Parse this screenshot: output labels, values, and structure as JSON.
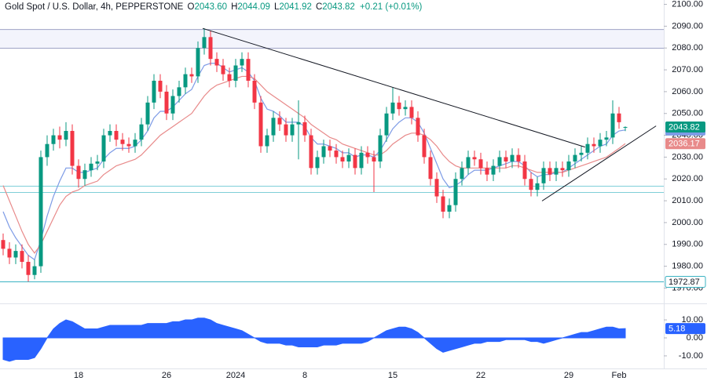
{
  "header": {
    "symbol": "Gold Spot / U.S. Dollar, 4h, PEPPERSTONE",
    "fields": [
      {
        "key": "O",
        "value": "2043.60"
      },
      {
        "key": "H",
        "value": "2044.09"
      },
      {
        "key": "L",
        "value": "2041.92"
      },
      {
        "key": "C",
        "value": "2043.82"
      }
    ],
    "change": "+0.21 (+0.01%)"
  },
  "chart_data": [
    {
      "type": "candlestick",
      "categories": [
        null,
        null,
        null,
        null,
        null,
        null,
        null,
        null,
        null,
        null,
        null,
        null,
        "18",
        null,
        null,
        null,
        null,
        null,
        null,
        null,
        null,
        null,
        null,
        null,
        null,
        null,
        "26",
        null,
        null,
        null,
        null,
        null,
        null,
        null,
        null,
        null,
        null,
        "2024",
        null,
        null,
        null,
        null,
        null,
        null,
        null,
        null,
        null,
        null,
        "8",
        null,
        null,
        null,
        null,
        null,
        null,
        null,
        null,
        null,
        null,
        null,
        null,
        null,
        "15",
        null,
        null,
        null,
        null,
        null,
        null,
        null,
        null,
        null,
        null,
        null,
        null,
        null,
        "22",
        null,
        null,
        null,
        null,
        null,
        null,
        null,
        null,
        null,
        null,
        null,
        null,
        null,
        "29",
        null,
        null,
        null,
        null,
        null,
        null,
        null,
        "Feb",
        null
      ],
      "open": [
        1992,
        1988,
        1984,
        1987,
        1982,
        1976,
        1980,
        2030,
        2036,
        2040,
        2038,
        2042,
        2026,
        2020,
        2024,
        2027,
        2028,
        2040,
        2042,
        2038,
        2036,
        2035,
        2038,
        2045,
        2055,
        2065,
        2060,
        2050,
        2058,
        2062,
        2068,
        2067,
        2080,
        2085,
        2075,
        2072,
        2068,
        2065,
        2072,
        2075,
        2065,
        2055,
        2035,
        2040,
        2048,
        2045,
        2040,
        2045,
        2046,
        2040,
        2025,
        2030,
        2035,
        2033,
        2030,
        2028,
        2031,
        2025,
        2032,
        2030,
        2028,
        2040,
        2050,
        2055,
        2052,
        2053,
        2048,
        2040,
        2030,
        2020,
        2012,
        2005,
        2008,
        2020,
        2025,
        2030,
        2029,
        2025,
        2022,
        2026,
        2030,
        2028,
        2031,
        2028,
        2020,
        2015,
        2018,
        2025,
        2022,
        2025,
        2024,
        2028,
        2031,
        2032,
        2036,
        2035,
        2038,
        2039,
        2050,
        2043.6
      ],
      "high": [
        1995,
        1991,
        1990,
        1990,
        1985,
        1983,
        2033,
        2040,
        2043,
        2044,
        2046,
        2045,
        2029,
        2027,
        2030,
        2031,
        2043,
        2045,
        2045,
        2041,
        2039,
        2041,
        2048,
        2058,
        2068,
        2068,
        2063,
        2061,
        2065,
        2071,
        2071,
        2083,
        2089,
        2088,
        2078,
        2075,
        2071,
        2075,
        2078,
        2078,
        2068,
        2058,
        2043,
        2051,
        2051,
        2048,
        2048,
        2056,
        2049,
        2043,
        2033,
        2038,
        2038,
        2036,
        2033,
        2034,
        2034,
        2035,
        2035,
        2033,
        2043,
        2053,
        2062,
        2058,
        2056,
        2056,
        2051,
        2043,
        2033,
        2023,
        2015,
        2011,
        2023,
        2028,
        2033,
        2033,
        2032,
        2028,
        2029,
        2033,
        2033,
        2034,
        2034,
        2031,
        2023,
        2021,
        2028,
        2028,
        2028,
        2028,
        2031,
        2034,
        2035,
        2039,
        2039,
        2041,
        2042,
        2056,
        2053,
        2044.09
      ],
      "low": [
        1985,
        1981,
        1981,
        1979,
        1973,
        1974,
        1977,
        2026,
        2033,
        2034,
        2035,
        2022,
        2016,
        2017,
        2021,
        2024,
        2025,
        2037,
        2035,
        2033,
        2032,
        2032,
        2035,
        2042,
        2052,
        2057,
        2047,
        2047,
        2055,
        2059,
        2064,
        2064,
        2077,
        2072,
        2069,
        2065,
        2062,
        2062,
        2069,
        2062,
        2052,
        2032,
        2032,
        2037,
        2042,
        2037,
        2037,
        2029,
        2037,
        2022,
        2022,
        2027,
        2030,
        2027,
        2025,
        2025,
        2022,
        2022,
        2027,
        2014,
        2025,
        2037,
        2047,
        2049,
        2049,
        2045,
        2037,
        2027,
        2017,
        2009,
        2002,
        2002,
        2005,
        2017,
        2022,
        2026,
        2022,
        2019,
        2019,
        2023,
        2025,
        2025,
        2025,
        2017,
        2012,
        2012,
        2015,
        2019,
        2019,
        2021,
        2021,
        2025,
        2028,
        2029,
        2032,
        2032,
        2035,
        2036,
        2043,
        2041.92
      ],
      "close": [
        1988,
        1984,
        1987,
        1982,
        1976,
        1980,
        2030,
        2036,
        2040,
        2038,
        2042,
        2026,
        2020,
        2024,
        2027,
        2028,
        2040,
        2042,
        2038,
        2036,
        2035,
        2038,
        2045,
        2055,
        2065,
        2060,
        2050,
        2058,
        2062,
        2068,
        2067,
        2080,
        2085,
        2075,
        2072,
        2068,
        2065,
        2072,
        2075,
        2065,
        2055,
        2035,
        2040,
        2048,
        2045,
        2040,
        2045,
        2046,
        2040,
        2025,
        2030,
        2035,
        2033,
        2030,
        2028,
        2031,
        2025,
        2032,
        2030,
        2028,
        2040,
        2050,
        2055,
        2052,
        2053,
        2048,
        2040,
        2030,
        2020,
        2012,
        2005,
        2008,
        2020,
        2025,
        2030,
        2029,
        2025,
        2022,
        2026,
        2030,
        2028,
        2031,
        2028,
        2020,
        2015,
        2018,
        2025,
        2022,
        2025,
        2024,
        2028,
        2031,
        2032,
        2036,
        2035,
        2038,
        2039,
        2050,
        2046,
        2043.82
      ],
      "up_color": "#089981",
      "down_color": "#f23645",
      "last_label": "2043.82",
      "moving_averages": [
        {
          "color": "#7d9be6",
          "last_label": "2042.43",
          "values": [
            2005,
            1998,
            1993,
            1989,
            1985,
            1983,
            1992,
            2003,
            2012,
            2019,
            2025,
            2025,
            2023,
            2023,
            2024,
            2025,
            2029,
            2032,
            2034,
            2034,
            2034,
            2035,
            2038,
            2042,
            2048,
            2051,
            2051,
            2053,
            2056,
            2059,
            2061,
            2067,
            2072,
            2073,
            2073,
            2071,
            2069,
            2070,
            2071,
            2069,
            2065,
            2057,
            2052,
            2051,
            2049,
            2046,
            2046,
            2046,
            2044,
            2039,
            2036,
            2036,
            2035,
            2034,
            2032,
            2032,
            2030,
            2031,
            2031,
            2030,
            2033,
            2038,
            2043,
            2046,
            2048,
            2048,
            2046,
            2041,
            2034,
            2027,
            2020,
            2016,
            2017,
            2019,
            2022,
            2024,
            2024,
            2024,
            2025,
            2026,
            2027,
            2028,
            2028,
            2026,
            2023,
            2021,
            2022,
            2022,
            2023,
            2023,
            2025,
            2027,
            2029,
            2031,
            2033,
            2035,
            2036,
            2040,
            2042,
            2042.43
          ]
        },
        {
          "color": "#e88a8a",
          "last_label": "2036.17",
          "values": [
            2017,
            2010,
            2003,
            1996,
            1990,
            1986,
            1990,
            1996,
            2002,
            2008,
            2012,
            2014,
            2015,
            2017,
            2018,
            2019,
            2022,
            2024,
            2026,
            2027,
            2028,
            2029,
            2031,
            2034,
            2037,
            2040,
            2042,
            2044,
            2046,
            2048,
            2050,
            2054,
            2058,
            2061,
            2063,
            2064,
            2065,
            2066,
            2067,
            2067,
            2066,
            2063,
            2060,
            2058,
            2056,
            2054,
            2052,
            2050,
            2048,
            2045,
            2043,
            2041,
            2039,
            2038,
            2036,
            2035,
            2034,
            2033,
            2032,
            2031,
            2031,
            2033,
            2036,
            2038,
            2040,
            2041,
            2041,
            2040,
            2038,
            2035,
            2031,
            2028,
            2026,
            2025,
            2025,
            2025,
            2025,
            2025,
            2025,
            2025,
            2025,
            2026,
            2026,
            2025,
            2024,
            2023,
            2023,
            2023,
            2023,
            2023,
            2024,
            2025,
            2026,
            2027,
            2028,
            2029,
            2030,
            2032,
            2034,
            2036.17
          ]
        }
      ],
      "levels": [
        {
          "value": 2088.5,
          "color": "#9fa3c6"
        },
        {
          "value": 2079.9,
          "color": "#9fa3c6"
        },
        {
          "value": 2016.7,
          "color": "#7fcfd8"
        },
        {
          "value": 2013.8,
          "color": "#7fcfd8"
        },
        {
          "value": 1972.87,
          "color": "#3bb3c3",
          "label": "1972.87"
        }
      ],
      "trendlines": [
        {
          "x": [
            31.75,
            92.6
          ],
          "y": [
            2089,
            2034.6
          ]
        },
        {
          "x": [
            85.75,
            103.9
          ],
          "y": [
            2009.9,
            2044.3
          ]
        }
      ],
      "trendline_color": "#131722",
      "ylim": [
        1968,
        2102
      ],
      "yticks": [
        {
          "value": 1970,
          "label": "1970.00"
        },
        {
          "value": 1980,
          "label": "1980.00"
        },
        {
          "value": 1990,
          "label": "1990.00"
        },
        {
          "value": 2000,
          "label": "2000.00"
        },
        {
          "value": 2010,
          "label": "2010.00"
        },
        {
          "value": 2020,
          "label": "2020.00"
        },
        {
          "value": 2030,
          "label": "2030.00"
        },
        {
          "value": 2040,
          "label": "2040.00"
        },
        {
          "value": 2050,
          "label": "2050.00"
        },
        {
          "value": 2060,
          "label": "2060.00"
        },
        {
          "value": 2070,
          "label": "2070.00"
        },
        {
          "value": 2080,
          "label": "2080.00"
        },
        {
          "value": 2090,
          "label": "2090.00"
        },
        {
          "value": 2100,
          "label": "2100.00"
        }
      ]
    },
    {
      "type": "area",
      "color": "#2962ff",
      "last_label": "5.18",
      "values": [
        -12,
        -13,
        -12,
        -12,
        -12,
        -11,
        -6,
        0,
        5,
        8,
        10,
        9,
        7,
        5,
        5,
        5,
        6,
        7,
        7,
        7,
        7,
        7,
        7,
        8,
        8,
        8,
        8,
        9,
        9,
        10,
        10,
        11,
        11,
        10,
        8,
        7,
        6,
        5,
        4,
        2,
        0,
        -2,
        -3,
        -3,
        -3,
        -4,
        -4,
        -5,
        -5,
        -5,
        -5,
        -4,
        -4,
        -4,
        -3,
        -3,
        -3,
        -3,
        -2,
        0,
        2,
        4,
        5,
        6,
        6,
        5,
        3,
        0,
        -3,
        -6,
        -8,
        -7,
        -6,
        -5,
        -4,
        -3,
        -3,
        -2,
        -2,
        -2,
        -1,
        -1,
        -1,
        -1,
        -2,
        -2,
        -3,
        -2,
        -1,
        0,
        1,
        2,
        3,
        3,
        4,
        5,
        6,
        6,
        5,
        5.18
      ],
      "ylim": [
        -17,
        17
      ],
      "yticks": [
        {
          "value": 10,
          "label": "10.00"
        },
        {
          "value": 0,
          "label": "0.00"
        },
        {
          "value": -10,
          "label": "-10.00"
        }
      ]
    }
  ]
}
